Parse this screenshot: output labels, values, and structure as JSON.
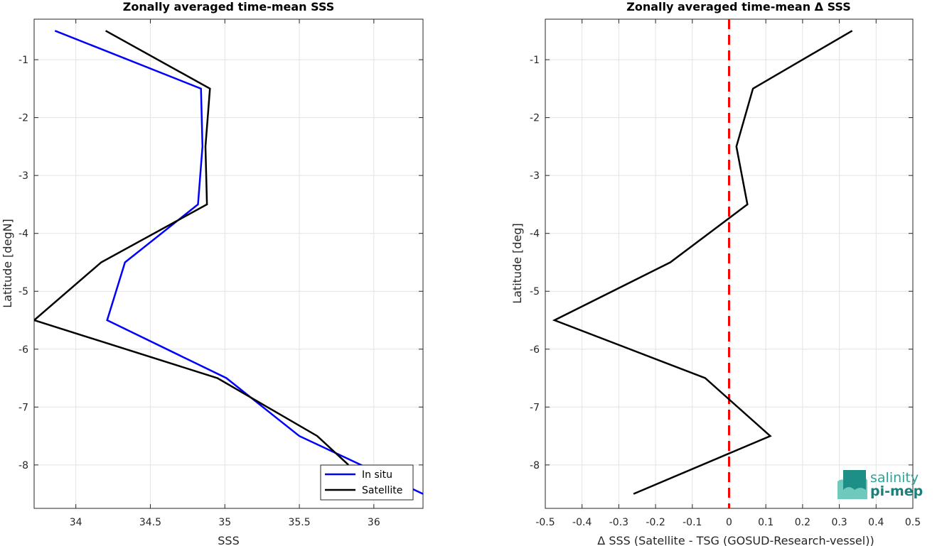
{
  "chart_data": [
    {
      "type": "line",
      "title": "Zonally averaged time-mean SSS",
      "xlabel": "SSS",
      "ylabel": "Latitude [degN]",
      "xlim": [
        33.72,
        36.33
      ],
      "ylim": [
        -8.75,
        -0.3
      ],
      "xticks": [
        34,
        34.5,
        35,
        35.5,
        36
      ],
      "xtick_labels": [
        "34",
        "34.5",
        "35",
        "35.5",
        "36"
      ],
      "yticks": [
        -8,
        -7,
        -6,
        -5,
        -4,
        -3,
        -2,
        -1
      ],
      "ytick_labels": [
        "-8",
        "-7",
        "-6",
        "-5",
        "-4",
        "-3",
        "-2",
        "-1"
      ],
      "grid": true,
      "legend_position": "bottom-right",
      "series": [
        {
          "name": "In situ",
          "color": "#0000ff",
          "points": [
            [
              33.86,
              -0.5
            ],
            [
              34.84,
              -1.5
            ],
            [
              34.85,
              -2.5
            ],
            [
              34.82,
              -3.5
            ],
            [
              34.33,
              -4.5
            ],
            [
              34.21,
              -5.5
            ],
            [
              35.01,
              -6.5
            ],
            [
              35.5,
              -7.5
            ],
            [
              36.33,
              -8.5
            ]
          ]
        },
        {
          "name": "Satellite",
          "color": "#000000",
          "points": [
            [
              34.2,
              -0.5
            ],
            [
              34.9,
              -1.5
            ],
            [
              34.87,
              -2.5
            ],
            [
              34.88,
              -3.5
            ],
            [
              34.17,
              -4.5
            ],
            [
              33.72,
              -5.5
            ],
            [
              34.95,
              -6.5
            ],
            [
              35.62,
              -7.5
            ],
            [
              35.83,
              -8.0
            ]
          ]
        }
      ]
    },
    {
      "type": "line",
      "title": "Zonally averaged time-mean Δ SSS",
      "xlabel": "Δ SSS (Satellite - TSG (GOSUD-Research-vessel))",
      "ylabel": "Latitude [deg]",
      "xlim": [
        -0.5,
        0.5
      ],
      "ylim": [
        -8.75,
        -0.3
      ],
      "xticks": [
        -0.5,
        -0.4,
        -0.3,
        -0.2,
        -0.1,
        0,
        0.1,
        0.2,
        0.3,
        0.4,
        0.5
      ],
      "xtick_labels": [
        "-0.5",
        "-0.4",
        "-0.3",
        "-0.2",
        "-0.1",
        "0",
        "0.1",
        "0.2",
        "0.3",
        "0.4",
        "0.5"
      ],
      "yticks": [
        -8,
        -7,
        -6,
        -5,
        -4,
        -3,
        -2,
        -1
      ],
      "ytick_labels": [
        "-8",
        "-7",
        "-6",
        "-5",
        "-4",
        "-3",
        "-2",
        "-1"
      ],
      "grid": true,
      "reference_line": {
        "x": 0,
        "color": "#ff0000",
        "style": "dashed"
      },
      "series": [
        {
          "color": "#000000",
          "points": [
            [
              0.335,
              -0.5
            ],
            [
              0.065,
              -1.5
            ],
            [
              0.02,
              -2.5
            ],
            [
              0.05,
              -3.5
            ],
            [
              -0.16,
              -4.5
            ],
            [
              -0.475,
              -5.5
            ],
            [
              -0.065,
              -6.5
            ],
            [
              0.112,
              -7.5
            ],
            [
              -0.26,
              -8.5
            ]
          ]
        }
      ]
    }
  ],
  "logo": {
    "line1": "salinity",
    "line2": "pi-mep"
  },
  "colors": {
    "insitu": "#0000ff",
    "satellite": "#000000",
    "zero_line": "#ff0000",
    "grid": "#e3e3e3",
    "logo": "#2aa39a"
  }
}
